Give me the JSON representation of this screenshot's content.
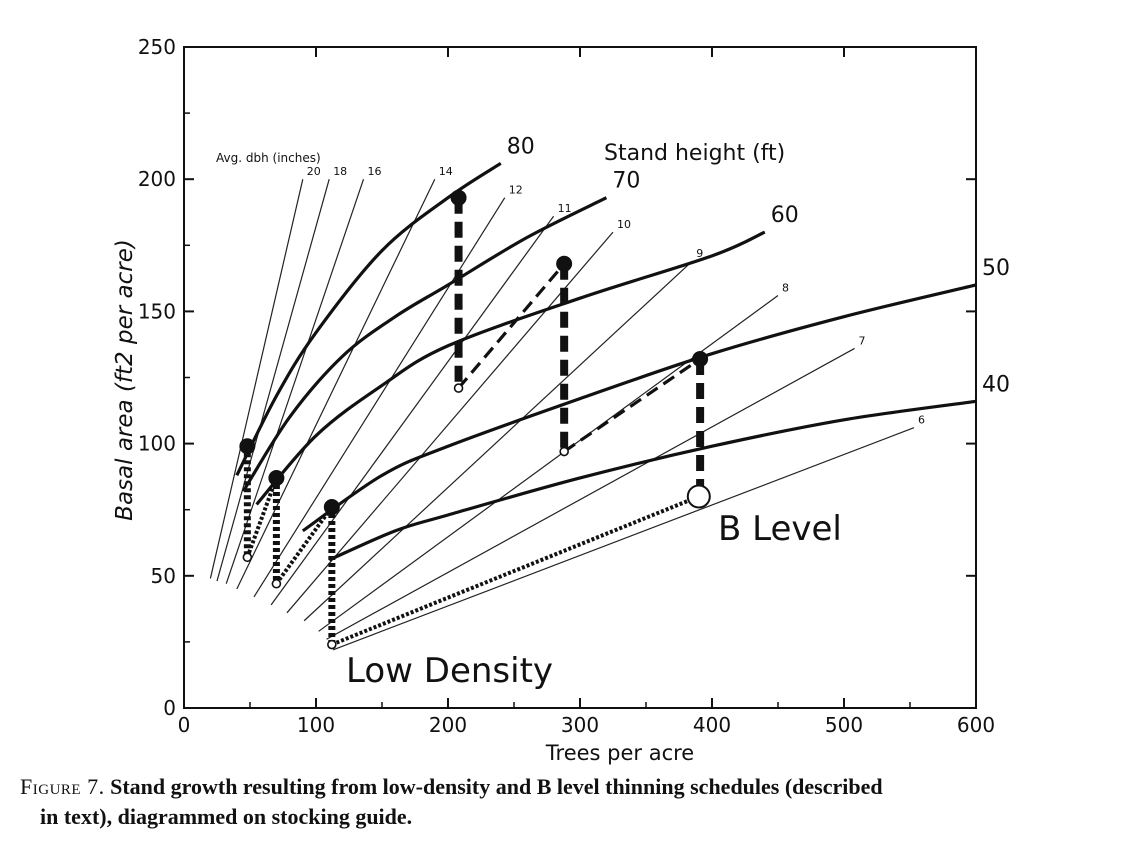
{
  "figure": {
    "caption_label": "Figure 7.",
    "caption_line1": "Stand growth resulting from low-density and B level thinning schedules (described",
    "caption_line2": "in text), diagrammed on stocking guide."
  },
  "chart_data": {
    "type": "line",
    "xlabel": "Trees per acre",
    "ylabel": "Basal area (ft2 per acre)",
    "xlim": [
      0,
      600
    ],
    "ylim": [
      0,
      250
    ],
    "xticks": [
      0,
      100,
      200,
      300,
      400,
      500,
      600
    ],
    "yticks": [
      0,
      50,
      100,
      150,
      200,
      250
    ],
    "grid": false,
    "dbh_title": "Avg. dbh (inches)",
    "dbh_lines": [
      {
        "label": "20",
        "from": [
          20,
          49
        ],
        "to": [
          90,
          200
        ]
      },
      {
        "label": "18",
        "from": [
          25,
          48
        ],
        "to": [
          110,
          200
        ]
      },
      {
        "label": "16",
        "from": [
          32,
          47
        ],
        "to": [
          136,
          200
        ]
      },
      {
        "label": "14",
        "from": [
          40,
          45
        ],
        "to": [
          190,
          200
        ]
      },
      {
        "label": "12",
        "from": [
          53,
          42
        ],
        "to": [
          243,
          193
        ]
      },
      {
        "label": "11",
        "from": [
          66,
          39
        ],
        "to": [
          280,
          186
        ]
      },
      {
        "label": "10",
        "from": [
          78,
          36
        ],
        "to": [
          325,
          180
        ]
      },
      {
        "label": "9",
        "from": [
          91,
          33
        ],
        "to": [
          385,
          169
        ]
      },
      {
        "label": "8",
        "from": [
          102,
          29
        ],
        "to": [
          450,
          156
        ]
      },
      {
        "label": "7",
        "from": [
          108,
          26
        ],
        "to": [
          508,
          136
        ]
      },
      {
        "label": "6",
        "from": [
          113,
          22
        ],
        "to": [
          553,
          106
        ]
      }
    ],
    "height_title": "Stand height (ft)",
    "height_curves": [
      {
        "label": "80",
        "points": [
          [
            40,
            88
          ],
          [
            70,
            118
          ],
          [
            100,
            142
          ],
          [
            150,
            173
          ],
          [
            200,
            193
          ],
          [
            240,
            206
          ]
        ]
      },
      {
        "label": "70",
        "points": [
          [
            45,
            82
          ],
          [
            80,
            110
          ],
          [
            120,
            133
          ],
          [
            160,
            148
          ],
          [
            200,
            160
          ],
          [
            260,
            178
          ],
          [
            320,
            193
          ]
        ]
      },
      {
        "label": "60",
        "points": [
          [
            55,
            77
          ],
          [
            100,
            103
          ],
          [
            150,
            122
          ],
          [
            200,
            137
          ],
          [
            300,
            155
          ],
          [
            400,
            171
          ],
          [
            440,
            180
          ]
        ]
      },
      {
        "label": "50",
        "points": [
          [
            90,
            67
          ],
          [
            150,
            88
          ],
          [
            200,
            99
          ],
          [
            300,
            117
          ],
          [
            400,
            134
          ],
          [
            500,
            148
          ],
          [
            600,
            160
          ]
        ]
      },
      {
        "label": "40",
        "points": [
          [
            110,
            56
          ],
          [
            160,
            67
          ],
          [
            200,
            73
          ],
          [
            300,
            87
          ],
          [
            400,
            99
          ],
          [
            500,
            109
          ],
          [
            600,
            116
          ]
        ]
      }
    ],
    "low_density": {
      "label": "Low Density",
      "thinned_points": [
        [
          48,
          57
        ],
        [
          70,
          47
        ],
        [
          112,
          24
        ]
      ],
      "peak_points": [
        [
          48,
          99
        ],
        [
          70,
          87
        ],
        [
          112,
          76
        ]
      ],
      "growth": [
        [
          [
            48,
            57
          ],
          [
            70,
            87
          ]
        ],
        [
          [
            70,
            47
          ],
          [
            112,
            76
          ]
        ],
        [
          [
            112,
            24
          ],
          [
            390,
            80
          ]
        ]
      ],
      "cuts": [
        [
          [
            48,
            99
          ],
          [
            48,
            57
          ]
        ],
        [
          [
            70,
            87
          ],
          [
            70,
            47
          ]
        ],
        [
          [
            112,
            76
          ],
          [
            112,
            24
          ]
        ]
      ]
    },
    "b_level": {
      "label": "B Level",
      "thinned_points": [
        [
          208,
          121
        ],
        [
          288,
          97
        ]
      ],
      "peak_points": [
        [
          208,
          193
        ],
        [
          288,
          168
        ],
        [
          391,
          132
        ]
      ],
      "end_point": [
        390,
        80
      ],
      "growth": [
        [
          [
            208,
            121
          ],
          [
            288,
            168
          ]
        ],
        [
          [
            288,
            97
          ],
          [
            391,
            132
          ]
        ]
      ],
      "cuts": [
        [
          [
            208,
            193
          ],
          [
            208,
            121
          ]
        ],
        [
          [
            288,
            168
          ],
          [
            288,
            97
          ]
        ],
        [
          [
            391,
            132
          ],
          [
            391,
            80
          ]
        ]
      ]
    }
  }
}
